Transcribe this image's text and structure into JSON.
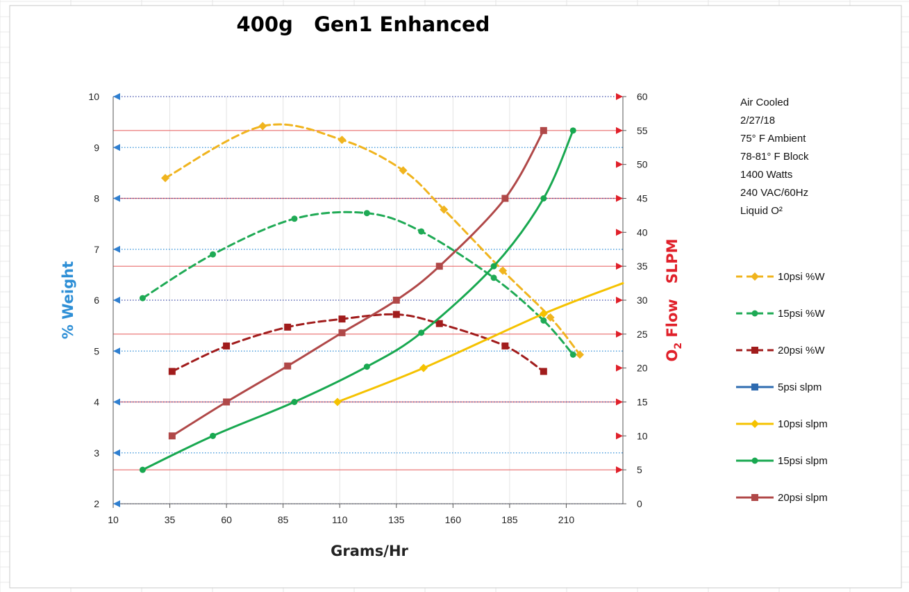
{
  "chart_data": {
    "type": "line",
    "title": "400g   Gen1 Enhanced",
    "xlabel": "Grams/Hr",
    "ylabel_left": "% Weight",
    "ylabel_right_main": "O",
    "ylabel_right_sub": "2",
    "ylabel_right_rest": " Flow   SLPM",
    "x_ticks": [
      10,
      35,
      60,
      85,
      110,
      135,
      160,
      185,
      210
    ],
    "xlim": [
      10,
      235
    ],
    "y_left_ticks": [
      2,
      3,
      4,
      5,
      6,
      7,
      8,
      9,
      10
    ],
    "ylim_left": [
      2,
      10
    ],
    "y_right_ticks": [
      0,
      5,
      10,
      15,
      20,
      25,
      30,
      35,
      40,
      45,
      50,
      55,
      60
    ],
    "ylim_right": [
      0,
      60
    ],
    "grid": true,
    "legend_position": "right",
    "notes": [
      "Air Cooled",
      "2/27/18",
      "75° F Ambient",
      "78-81° F Block",
      "1400 Watts",
      "240 VAC/60Hz",
      "Liquid O²"
    ],
    "series": [
      {
        "name": "10psi %W",
        "axis": "left",
        "color": "#f0b41e",
        "dashed": true,
        "marker": "diamond",
        "x": [
          33,
          76,
          111,
          138,
          156,
          182,
          203,
          216
        ],
        "y": [
          8.4,
          9.42,
          9.15,
          8.55,
          7.78,
          6.58,
          5.66,
          4.93
        ]
      },
      {
        "name": "15psi %W",
        "axis": "left",
        "color": "#1faa55",
        "dashed": true,
        "marker": "circle",
        "x": [
          23,
          54,
          90,
          122,
          146,
          178,
          200,
          213
        ],
        "y": [
          6.04,
          6.9,
          7.6,
          7.71,
          7.35,
          6.44,
          5.6,
          4.93
        ]
      },
      {
        "name": "20psi %W",
        "axis": "left",
        "color": "#a11c1c",
        "dashed": true,
        "marker": "square",
        "x": [
          36,
          60,
          87,
          111,
          135,
          154,
          183,
          200
        ],
        "y": [
          4.6,
          5.1,
          5.47,
          5.63,
          5.72,
          5.54,
          5.1,
          4.6
        ]
      },
      {
        "name": "5psi slpm",
        "axis": "right",
        "color": "#2e6bb0",
        "dashed": false,
        "marker": "square",
        "x": [],
        "y": []
      },
      {
        "name": "10psi slpm",
        "axis": "right",
        "color": "#f5c200",
        "dashed": false,
        "marker": "diamond",
        "x": [
          109,
          147,
          200,
          235
        ],
        "y": [
          15,
          20,
          28,
          32.5
        ]
      },
      {
        "name": "15psi slpm",
        "axis": "right",
        "color": "#18a850",
        "dashed": false,
        "marker": "circle",
        "x": [
          23,
          54,
          90,
          122,
          146,
          178,
          200,
          213
        ],
        "y": [
          5,
          10,
          15,
          20.2,
          25.2,
          35,
          45,
          55
        ]
      },
      {
        "name": "20psi slpm",
        "axis": "right",
        "color": "#b04848",
        "dashed": false,
        "marker": "square",
        "x": [
          36,
          60,
          87,
          111,
          135,
          154,
          183,
          200
        ],
        "y": [
          10,
          15,
          20.3,
          25.2,
          30,
          35,
          45,
          55
        ]
      }
    ]
  }
}
